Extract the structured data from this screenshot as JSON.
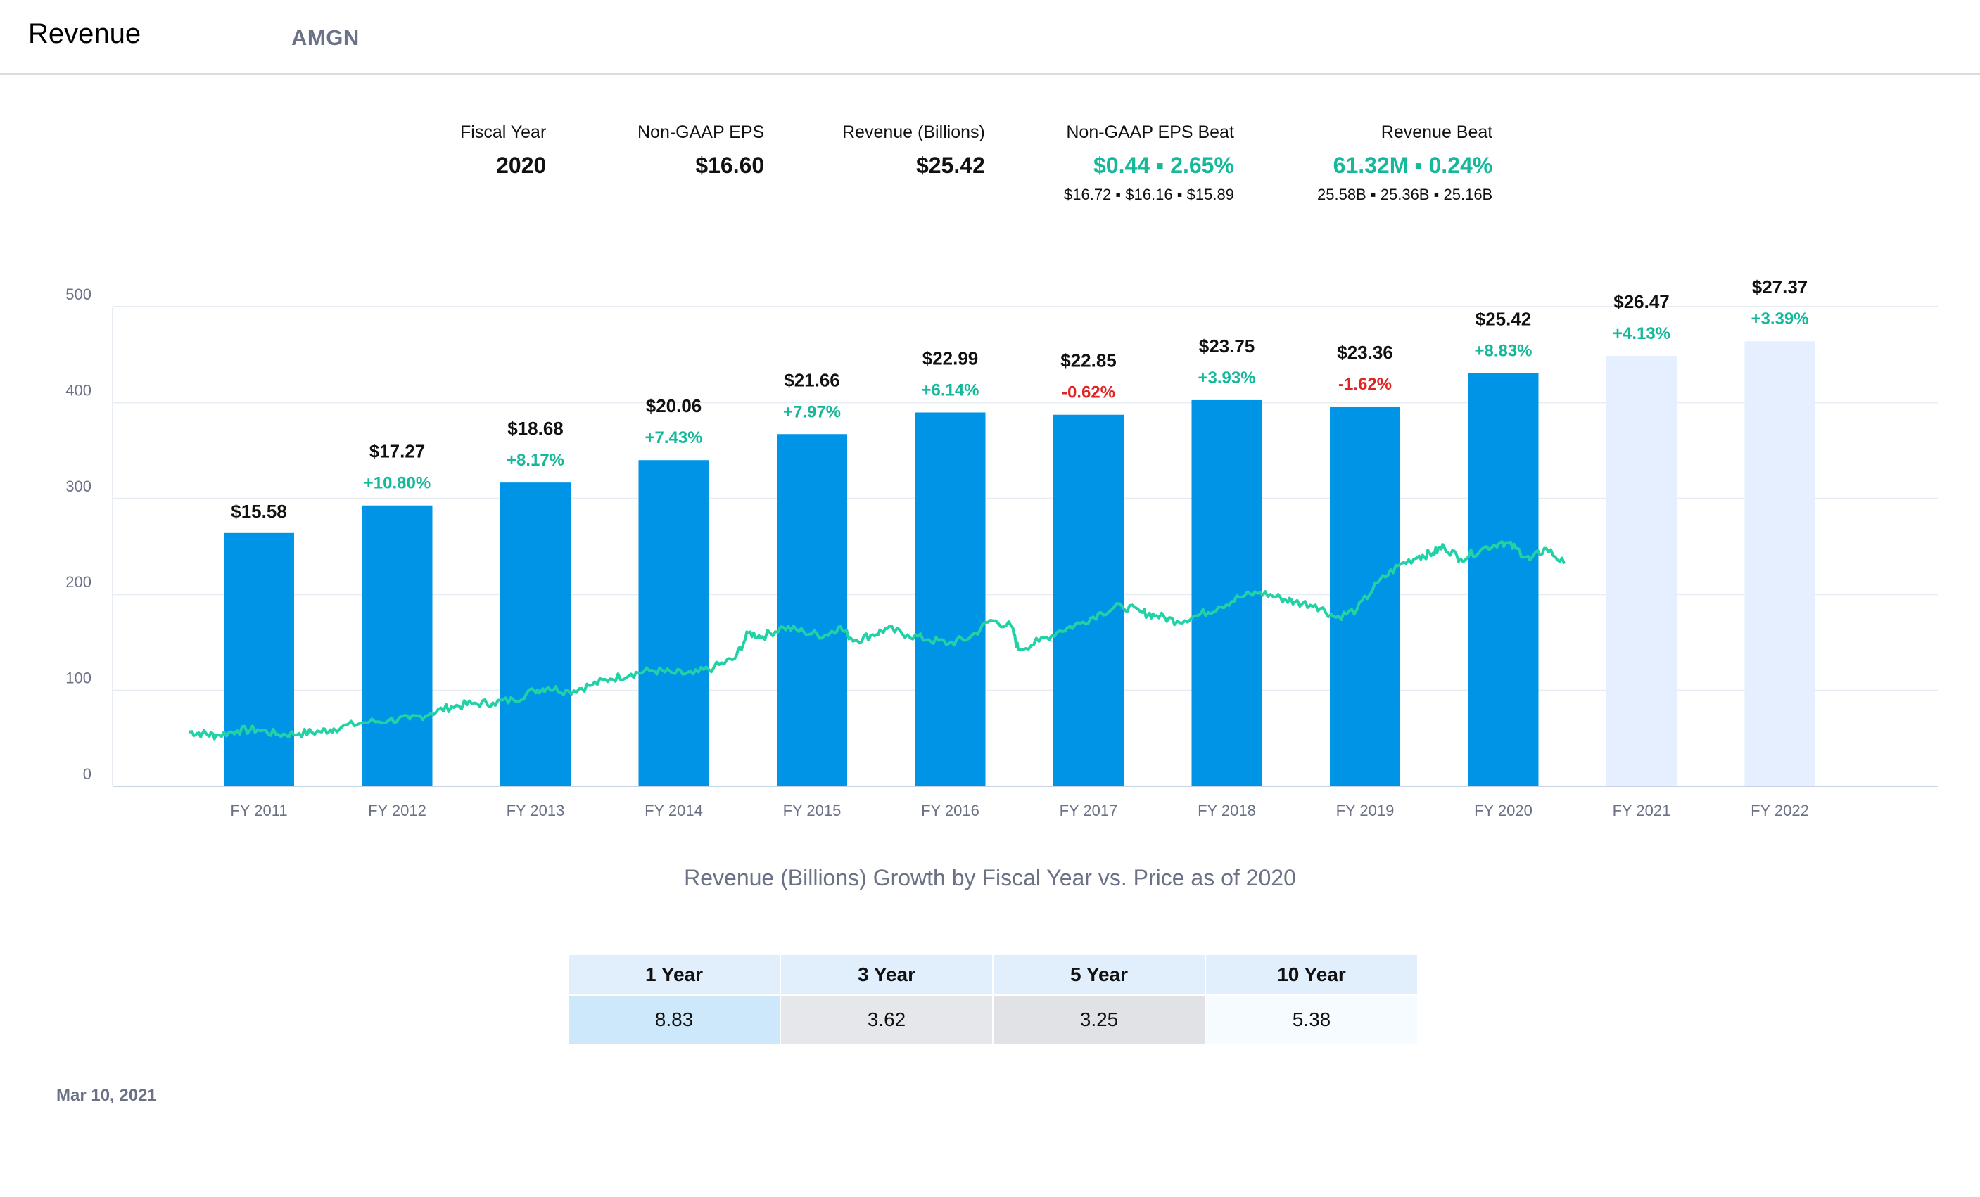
{
  "header": {
    "title": "Revenue",
    "ticker": "AMGN"
  },
  "summary": {
    "fiscal_year_label": "Fiscal Year",
    "fiscal_year_value": "2020",
    "eps_label": "Non-GAAP EPS",
    "eps_value": "$16.60",
    "revenue_label": "Revenue (Billions)",
    "revenue_value": "$25.42",
    "eps_beat_label": "Non-GAAP EPS Beat",
    "eps_beat_value": "$0.44 ▪ 2.65%",
    "eps_beat_sub": "$16.72 ▪ $16.16 ▪ $15.89",
    "rev_beat_label": "Revenue Beat",
    "rev_beat_value": "61.32M  ▪ 0.24%",
    "rev_beat_sub": "25.58B ▪ 25.36B ▪ 25.16B"
  },
  "chart_data": {
    "type": "bar",
    "categories": [
      "FY 2011",
      "FY 2012",
      "FY 2013",
      "FY 2014",
      "FY 2015",
      "FY 2016",
      "FY 2017",
      "FY 2018",
      "FY 2019",
      "FY 2020",
      "FY 2021",
      "FY 2022"
    ],
    "series": [
      {
        "values": [
          15.58,
          17.27,
          18.68,
          20.06,
          21.66,
          22.99,
          22.85,
          23.75,
          23.36,
          25.42,
          26.47,
          27.37
        ],
        "labels": [
          "$15.58",
          "$17.27",
          "$18.68",
          "$20.06",
          "$21.66",
          "$22.99",
          "$22.85",
          "$23.75",
          "$23.36",
          "$25.42",
          "$26.47",
          "$27.37"
        ],
        "growth": [
          "",
          "+10.80%",
          "+8.17%",
          "+7.43%",
          "+7.97%",
          "+6.14%",
          "-0.62%",
          "+3.93%",
          "-1.62%",
          "+8.83%",
          "+4.13%",
          "+3.39%"
        ],
        "estimate": [
          false,
          false,
          false,
          false,
          false,
          false,
          false,
          false,
          false,
          false,
          true,
          true
        ]
      }
    ],
    "price": {
      "points": [
        [
          2011.0,
          57
        ],
        [
          2011.1,
          55
        ],
        [
          2011.2,
          53
        ],
        [
          2011.35,
          58
        ],
        [
          2011.5,
          59
        ],
        [
          2011.65,
          54
        ],
        [
          2011.8,
          55
        ],
        [
          2011.95,
          57
        ],
        [
          2012.05,
          60
        ],
        [
          2012.25,
          66
        ],
        [
          2012.45,
          69
        ],
        [
          2012.6,
          70
        ],
        [
          2012.75,
          76
        ],
        [
          2012.9,
          83
        ],
        [
          2013.05,
          86
        ],
        [
          2013.2,
          87
        ],
        [
          2013.35,
          90
        ],
        [
          2013.5,
          100
        ],
        [
          2013.6,
          103
        ],
        [
          2013.75,
          99
        ],
        [
          2013.9,
          105
        ],
        [
          2014.05,
          112
        ],
        [
          2014.2,
          117
        ],
        [
          2014.35,
          121
        ],
        [
          2014.5,
          118
        ],
        [
          2014.65,
          117
        ],
        [
          2014.8,
          124
        ],
        [
          2014.95,
          133
        ],
        [
          2015.05,
          160
        ],
        [
          2015.15,
          156
        ],
        [
          2015.3,
          166
        ],
        [
          2015.45,
          161
        ],
        [
          2015.6,
          157
        ],
        [
          2015.7,
          166
        ],
        [
          2015.82,
          152
        ],
        [
          2015.95,
          158
        ],
        [
          2016.05,
          164
        ],
        [
          2016.2,
          158
        ],
        [
          2016.35,
          153
        ],
        [
          2016.5,
          149
        ],
        [
          2016.65,
          155
        ],
        [
          2016.8,
          173
        ],
        [
          2016.95,
          167
        ],
        [
          2017.0,
          143
        ],
        [
          2017.15,
          151
        ],
        [
          2017.3,
          162
        ],
        [
          2017.45,
          170
        ],
        [
          2017.6,
          181
        ],
        [
          2017.75,
          188
        ],
        [
          2017.9,
          181
        ],
        [
          2018.0,
          178
        ],
        [
          2018.15,
          172
        ],
        [
          2018.3,
          178
        ],
        [
          2018.45,
          187
        ],
        [
          2018.6,
          197
        ],
        [
          2018.75,
          202
        ],
        [
          2018.9,
          196
        ],
        [
          2019.0,
          192
        ],
        [
          2019.15,
          189
        ],
        [
          2019.3,
          176
        ],
        [
          2019.45,
          184
        ],
        [
          2019.6,
          212
        ],
        [
          2019.75,
          230
        ],
        [
          2019.9,
          240
        ],
        [
          2020.0,
          243
        ],
        [
          2020.08,
          250
        ],
        [
          2020.2,
          237
        ],
        [
          2020.35,
          247
        ],
        [
          2020.5,
          255
        ],
        [
          2020.6,
          248
        ],
        [
          2020.7,
          236
        ],
        [
          2020.82,
          248
        ],
        [
          2020.95,
          232
        ]
      ]
    },
    "axes": {
      "y_ticks": [
        "500",
        "400",
        "300",
        "200",
        "100",
        "0"
      ],
      "ylim": [
        0,
        500
      ],
      "bar_ylim": [
        0,
        29.5
      ]
    },
    "grid": true,
    "title": "Revenue (Billions) Growth by Fiscal Year vs. Price as of 2020"
  },
  "growth_table": {
    "headers": [
      "1 Year",
      "3 Year",
      "5 Year",
      "10 Year"
    ],
    "values": [
      "8.83",
      "3.62",
      "3.25",
      "5.38"
    ],
    "colors": [
      "#cde8fb",
      "#e6e7ea",
      "#e1e2e6",
      "#f6fbff"
    ]
  },
  "footer": {
    "date": "Mar 10, 2021"
  },
  "colors": {
    "bar": "#0094e6",
    "bar_estimate": "#e6efff",
    "price_line": "#22d1a4",
    "positive": "#16b89a",
    "negative": "#e02424",
    "axis_text": "#6b7286"
  }
}
